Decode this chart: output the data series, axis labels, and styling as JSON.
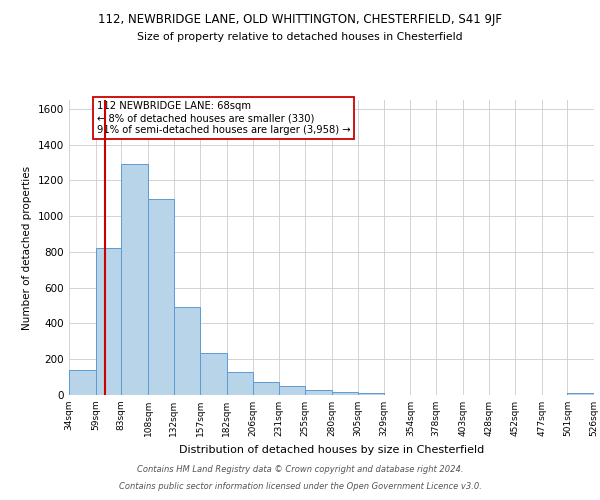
{
  "title_line1": "112, NEWBRIDGE LANE, OLD WHITTINGTON, CHESTERFIELD, S41 9JF",
  "title_line2": "Size of property relative to detached houses in Chesterfield",
  "xlabel": "Distribution of detached houses by size in Chesterfield",
  "ylabel": "Number of detached properties",
  "bar_counts": [
    140,
    820,
    1290,
    1095,
    490,
    235,
    130,
    75,
    50,
    27,
    15,
    10,
    0,
    0,
    0,
    0,
    0,
    0,
    0,
    10
  ],
  "bin_labels": [
    "34sqm",
    "59sqm",
    "83sqm",
    "108sqm",
    "132sqm",
    "157sqm",
    "182sqm",
    "206sqm",
    "231sqm",
    "255sqm",
    "280sqm",
    "305sqm",
    "329sqm",
    "354sqm",
    "378sqm",
    "403sqm",
    "428sqm",
    "452sqm",
    "477sqm",
    "501sqm",
    "526sqm"
  ],
  "bar_color": "#b8d4e8",
  "bar_edge_color": "#5b9bd5",
  "property_line_x": 68,
  "annotation_text": "112 NEWBRIDGE LANE: 68sqm\n← 8% of detached houses are smaller (330)\n91% of semi-detached houses are larger (3,958) →",
  "annotation_box_color": "#ffffff",
  "annotation_box_edge": "#cc0000",
  "vline_color": "#cc0000",
  "ylim": [
    0,
    1650
  ],
  "yticks": [
    0,
    200,
    400,
    600,
    800,
    1000,
    1200,
    1400,
    1600
  ],
  "grid_color": "#cccccc",
  "footer_line1": "Contains HM Land Registry data © Crown copyright and database right 2024.",
  "footer_line2": "Contains public sector information licensed under the Open Government Licence v3.0.",
  "bin_edges": [
    34,
    59,
    83,
    108,
    132,
    157,
    182,
    206,
    231,
    255,
    280,
    305,
    329,
    354,
    378,
    403,
    428,
    452,
    477,
    501,
    526
  ]
}
